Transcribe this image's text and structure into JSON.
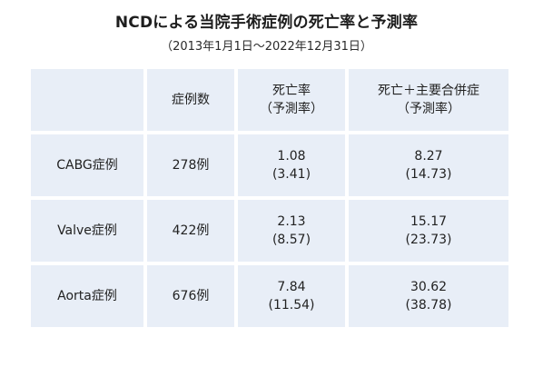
{
  "title": "NCDによる当院手術症例の死亡率と予測率",
  "subtitle": "（2013年1月1日～2022年12月31日）",
  "table": {
    "headers": [
      {
        "line1": "",
        "line2": ""
      },
      {
        "line1": "症例数",
        "line2": ""
      },
      {
        "line1": "死亡率",
        "line2": "（予測率）"
      },
      {
        "line1": "死亡＋主要合併症",
        "line2": "（予測率）"
      }
    ],
    "rows": [
      {
        "label": "CABG症例",
        "count": "278例",
        "mortality": "1.08",
        "mortality_pred": "(3.41)",
        "composite": "8.27",
        "composite_pred": "(14.73)"
      },
      {
        "label": "Valve症例",
        "count": "422例",
        "mortality": "2.13",
        "mortality_pred": "(8.57)",
        "composite": "15.17",
        "composite_pred": "(23.73)"
      },
      {
        "label": "Aorta症例",
        "count": "676例",
        "mortality": "7.84",
        "mortality_pred": "(11.54)",
        "composite": "30.62",
        "composite_pred": "(38.78)"
      }
    ]
  }
}
